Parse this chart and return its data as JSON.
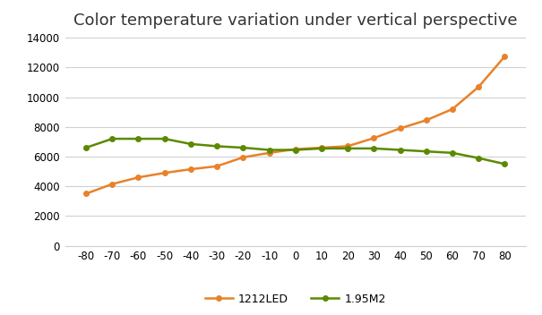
{
  "title": "Color temperature variation under vertical perspective",
  "x": [
    -80,
    -70,
    -60,
    -50,
    -40,
    -30,
    -20,
    -10,
    0,
    10,
    20,
    30,
    40,
    50,
    60,
    70,
    80
  ],
  "led_1212": [
    3500,
    4150,
    4600,
    4900,
    5150,
    5350,
    5950,
    6250,
    6500,
    6600,
    6700,
    7250,
    7900,
    8450,
    9200,
    10700,
    12750
  ],
  "m2_195": [
    6600,
    7200,
    7200,
    7200,
    6850,
    6700,
    6600,
    6450,
    6450,
    6550,
    6550,
    6550,
    6450,
    6350,
    6250,
    5900,
    5500
  ],
  "color_1212led": "#E8822A",
  "color_195m2": "#5B8A00",
  "ylim": [
    0,
    14000
  ],
  "yticks": [
    0,
    2000,
    4000,
    6000,
    8000,
    10000,
    12000,
    14000
  ],
  "xticks": [
    -80,
    -70,
    -60,
    -50,
    -40,
    -30,
    -20,
    -10,
    0,
    10,
    20,
    30,
    40,
    50,
    60,
    70,
    80
  ],
  "legend_labels": [
    "1212LED",
    "1.95M2"
  ],
  "background_color": "#ffffff",
  "grid_color": "#d0d0d0",
  "marker": "o",
  "marker_size": 4,
  "linewidth": 1.8,
  "title_fontsize": 13,
  "tick_fontsize": 8.5
}
